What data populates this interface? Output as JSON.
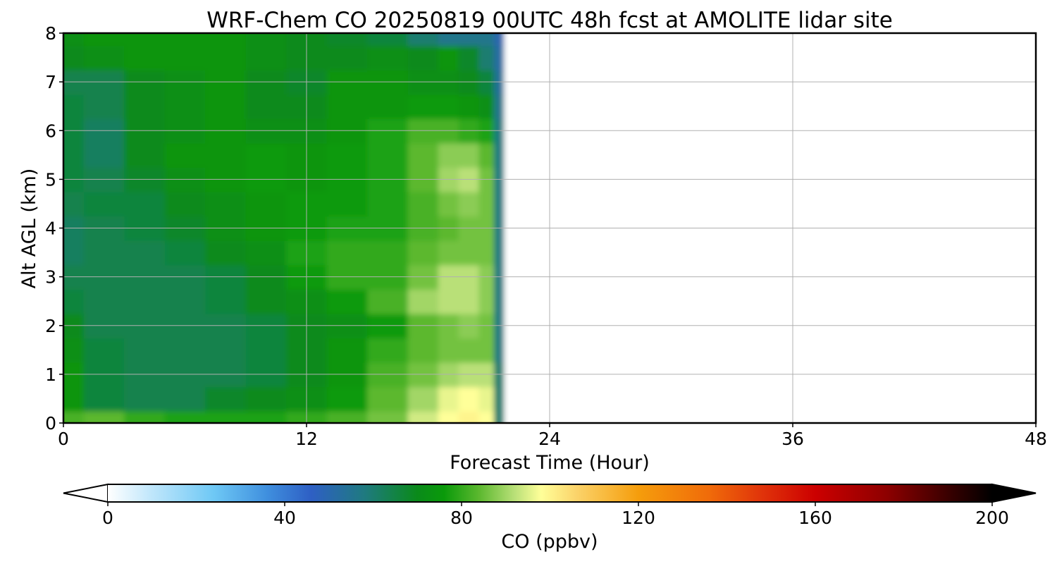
{
  "chart_data": {
    "type": "heatmap",
    "title": "WRF-Chem CO  20250819 00UTC 48h fcst at AMOLITE lidar site",
    "xlabel": "Forecast Time (Hour)",
    "ylabel": "Alt AGL (km)",
    "xlim": [
      0,
      48
    ],
    "ylim": [
      0,
      8
    ],
    "x_ticks": [
      "0",
      "12",
      "24",
      "36",
      "48"
    ],
    "y_ticks": [
      "0",
      "1",
      "2",
      "3",
      "4",
      "5",
      "6",
      "7",
      "8"
    ],
    "grid": true,
    "data_extent_hours": [
      0,
      22
    ],
    "x": [
      0,
      2,
      4,
      6,
      8,
      10,
      12,
      14,
      16,
      18,
      19,
      20,
      21,
      21.5,
      22
    ],
    "y": [
      0,
      0.5,
      1,
      1.5,
      2,
      2.5,
      3,
      3.5,
      4,
      4.5,
      5,
      5.5,
      6,
      6.5,
      7,
      7.5,
      8
    ],
    "z": [
      [
        82,
        84,
        80,
        78,
        78,
        78,
        80,
        82,
        86,
        94,
        98,
        100,
        98,
        60,
        0
      ],
      [
        74,
        66,
        64,
        64,
        68,
        70,
        72,
        76,
        84,
        90,
        96,
        98,
        96,
        60,
        0
      ],
      [
        74,
        66,
        64,
        64,
        64,
        66,
        70,
        74,
        82,
        86,
        90,
        92,
        92,
        60,
        0
      ],
      [
        72,
        66,
        64,
        64,
        64,
        66,
        70,
        74,
        80,
        84,
        86,
        86,
        86,
        58,
        0
      ],
      [
        70,
        64,
        64,
        64,
        64,
        66,
        70,
        72,
        76,
        84,
        86,
        88,
        86,
        58,
        0
      ],
      [
        66,
        64,
        64,
        64,
        66,
        70,
        72,
        76,
        82,
        90,
        92,
        92,
        88,
        58,
        0
      ],
      [
        64,
        64,
        64,
        64,
        66,
        70,
        76,
        80,
        80,
        86,
        92,
        92,
        88,
        58,
        0
      ],
      [
        62,
        64,
        64,
        66,
        70,
        72,
        78,
        80,
        80,
        84,
        86,
        86,
        86,
        58,
        0
      ],
      [
        62,
        64,
        66,
        68,
        72,
        74,
        76,
        78,
        78,
        82,
        84,
        86,
        86,
        58,
        0
      ],
      [
        64,
        66,
        66,
        70,
        72,
        74,
        76,
        76,
        78,
        82,
        86,
        88,
        86,
        58,
        0
      ],
      [
        66,
        64,
        68,
        72,
        74,
        76,
        74,
        76,
        78,
        84,
        90,
        92,
        86,
        58,
        0
      ],
      [
        66,
        62,
        70,
        74,
        74,
        76,
        74,
        76,
        78,
        84,
        88,
        88,
        84,
        58,
        0
      ],
      [
        66,
        62,
        70,
        72,
        74,
        72,
        72,
        74,
        78,
        82,
        82,
        80,
        78,
        58,
        0
      ],
      [
        66,
        64,
        70,
        72,
        74,
        70,
        70,
        74,
        74,
        76,
        76,
        74,
        72,
        56,
        0
      ],
      [
        64,
        64,
        70,
        72,
        74,
        70,
        68,
        74,
        74,
        72,
        72,
        70,
        66,
        54,
        0
      ],
      [
        70,
        72,
        74,
        74,
        74,
        72,
        70,
        70,
        72,
        70,
        74,
        68,
        60,
        52,
        0
      ],
      [
        72,
        74,
        74,
        74,
        74,
        72,
        70,
        68,
        66,
        60,
        56,
        56,
        56,
        50,
        0
      ]
    ],
    "colorbar": {
      "label": "CO  (ppbv)",
      "min": 0,
      "max": 200,
      "ticks": [
        "0",
        "40",
        "80",
        "120",
        "160",
        "200"
      ],
      "extend": "both",
      "stops": [
        [
          0,
          "#ffffff"
        ],
        [
          10,
          "#bfe6fb"
        ],
        [
          24,
          "#6ec8f5"
        ],
        [
          36,
          "#3f8fde"
        ],
        [
          46,
          "#2e5fc4"
        ],
        [
          58,
          "#1f7a80"
        ],
        [
          70,
          "#0a8a1a"
        ],
        [
          76,
          "#0a9a0a"
        ],
        [
          84,
          "#5cb82f"
        ],
        [
          92,
          "#b9e078"
        ],
        [
          98,
          "#ffff99"
        ],
        [
          106,
          "#fbd36a"
        ],
        [
          120,
          "#f59d0c"
        ],
        [
          136,
          "#f06b0a"
        ],
        [
          148,
          "#e0330a"
        ],
        [
          160,
          "#cc0000"
        ],
        [
          176,
          "#8e0000"
        ],
        [
          190,
          "#3a0000"
        ],
        [
          200,
          "#000000"
        ]
      ]
    }
  }
}
